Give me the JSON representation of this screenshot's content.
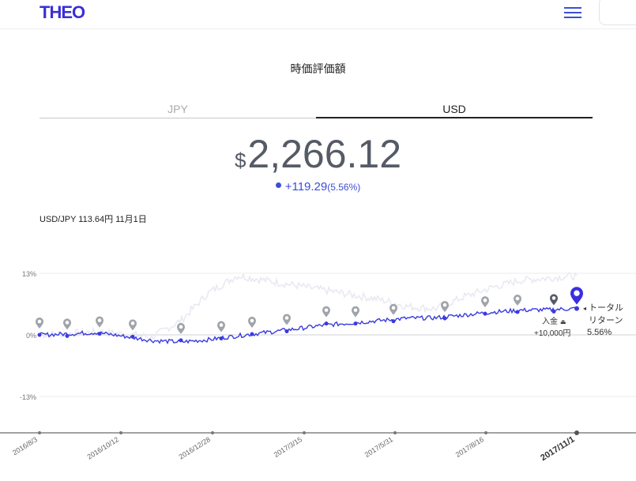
{
  "header": {
    "logo": "THEO",
    "menu_icon": "hamburger-menu-icon"
  },
  "title": "時価評価額",
  "tabs": [
    {
      "label": "JPY",
      "active": false
    },
    {
      "label": "USD",
      "active": true
    }
  ],
  "valuation": {
    "currency": "$",
    "amount": "2,266.12",
    "change": "+119.29",
    "change_pct": "(5.56%)"
  },
  "fx": "USD/JPY 113.64円 11月1日",
  "colors": {
    "accent": "#3a2fd8",
    "line_usd": "#3a3ae0",
    "line_jpy": "#e8e8f2",
    "marker": "#a0a4aa"
  },
  "chart_data": {
    "type": "line",
    "y_ticks": [
      "13%",
      "0%",
      "-13%"
    ],
    "ylim": [
      -13,
      13
    ],
    "x_ticks": [
      "2016/8/3",
      "2016/10/12",
      "2016/12/28",
      "2017/3/15",
      "2017/5/31",
      "2017/8/16",
      "2017/11/1"
    ],
    "series": [
      {
        "name": "USD",
        "values": [
          0,
          0.2,
          0.5,
          -0.3,
          -1.2,
          -1.5,
          -1.0,
          -0.2,
          0.5,
          1.2,
          2.0,
          2.5,
          3.0,
          3.5,
          3.6,
          4.2,
          4.8,
          5.2,
          5.3,
          5.56
        ]
      },
      {
        "name": "JPY",
        "values": [
          0,
          0.3,
          0.6,
          0.2,
          -0.4,
          3.0,
          9.0,
          12.5,
          11.5,
          10.5,
          9.5,
          8.5,
          7.5,
          6.0,
          5.5,
          8.0,
          10.0,
          11.5,
          12.0,
          12.5
        ]
      }
    ],
    "deposit_marker": {
      "label": "入金",
      "amount": "+10,000円"
    },
    "current_marker": {
      "label1": "トータル",
      "label2": "リターン",
      "value": "5.56%"
    }
  }
}
